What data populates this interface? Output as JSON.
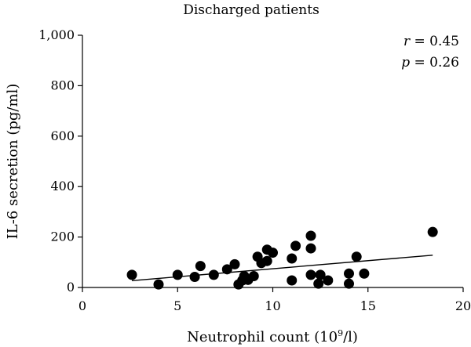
{
  "chart_data": {
    "type": "scatter",
    "title": "Discharged patients",
    "xlabel": "Neutrophil count (10",
    "xlabel_sup": "9",
    "xlabel_tail": "/l)",
    "ylabel": "IL-6 secretion (pg/ml)",
    "xlim": [
      0,
      20
    ],
    "ylim": [
      0,
      1000
    ],
    "x_ticks": [
      0,
      5,
      10,
      15,
      20
    ],
    "x_tick_labels": [
      "0",
      "5",
      "10",
      "15",
      "20"
    ],
    "y_ticks": [
      0,
      200,
      400,
      600,
      800,
      1000
    ],
    "y_tick_labels": [
      "0",
      "200",
      "400",
      "600",
      "800",
      "1,000"
    ],
    "annotations": {
      "r_symbol": "r",
      "r_value": " = 0.45",
      "p_symbol": "p",
      "p_value": " = 0.26"
    },
    "series": [
      {
        "points": [
          {
            "x": 2.6,
            "y": 50
          },
          {
            "x": 4.0,
            "y": 12
          },
          {
            "x": 5.0,
            "y": 50
          },
          {
            "x": 5.9,
            "y": 42
          },
          {
            "x": 6.2,
            "y": 85
          },
          {
            "x": 6.9,
            "y": 50
          },
          {
            "x": 7.6,
            "y": 72
          },
          {
            "x": 8.0,
            "y": 92
          },
          {
            "x": 8.2,
            "y": 12
          },
          {
            "x": 8.4,
            "y": 28
          },
          {
            "x": 8.5,
            "y": 45
          },
          {
            "x": 8.7,
            "y": 30
          },
          {
            "x": 9.0,
            "y": 45
          },
          {
            "x": 9.2,
            "y": 122
          },
          {
            "x": 9.4,
            "y": 97
          },
          {
            "x": 9.7,
            "y": 150
          },
          {
            "x": 9.7,
            "y": 105
          },
          {
            "x": 10.0,
            "y": 138
          },
          {
            "x": 11.0,
            "y": 115
          },
          {
            "x": 11.0,
            "y": 28
          },
          {
            "x": 11.2,
            "y": 165
          },
          {
            "x": 12.0,
            "y": 205
          },
          {
            "x": 12.0,
            "y": 155
          },
          {
            "x": 12.0,
            "y": 50
          },
          {
            "x": 12.4,
            "y": 15
          },
          {
            "x": 12.5,
            "y": 50
          },
          {
            "x": 12.9,
            "y": 28
          },
          {
            "x": 14.0,
            "y": 55
          },
          {
            "x": 14.0,
            "y": 15
          },
          {
            "x": 14.4,
            "y": 122
          },
          {
            "x": 14.8,
            "y": 55
          },
          {
            "x": 18.4,
            "y": 220
          }
        ]
      }
    ],
    "trendline": {
      "x1": 2.6,
      "y1": 27,
      "x2": 18.4,
      "y2": 128
    }
  }
}
